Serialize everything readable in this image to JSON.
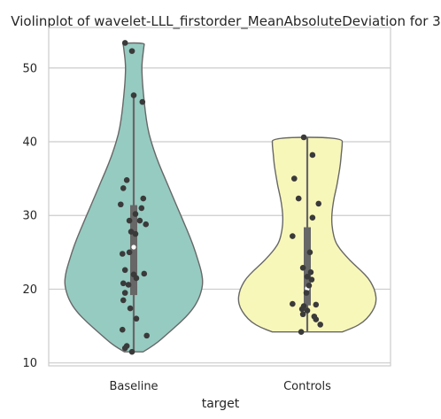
{
  "chart_data": {
    "type": "violin",
    "title": "Violinplot of wavelet-LLL_firstorder_MeanAbsoluteDeviation for 3",
    "xlabel": "target",
    "ylabel": "",
    "categories": [
      "Baseline",
      "Controls"
    ],
    "ylim": [
      9.6,
      55.5
    ],
    "yticks": [
      10,
      20,
      30,
      40,
      50
    ],
    "grid": true,
    "colors": [
      "#96cbc1",
      "#f8f7ba"
    ],
    "outline_color": "#676767",
    "box_color": "#676767",
    "point_color": "#3a3a3a",
    "series": [
      {
        "name": "Baseline",
        "range": [
          11.5,
          53.4
        ],
        "quartiles": [
          19.2,
          25.7,
          31.4
        ],
        "whiskers": [
          11.5,
          46.2
        ],
        "profile": [
          [
            11.5,
            10.5
          ],
          [
            12.5,
            24
          ],
          [
            14,
            38
          ],
          [
            15.5,
            52
          ],
          [
            17,
            64
          ],
          [
            18.5,
            72
          ],
          [
            20,
            76
          ],
          [
            21,
            77
          ],
          [
            22,
            76
          ],
          [
            23,
            74
          ],
          [
            25,
            69
          ],
          [
            27,
            63
          ],
          [
            29,
            56
          ],
          [
            31,
            49
          ],
          [
            33,
            42
          ],
          [
            35,
            35
          ],
          [
            37,
            28
          ],
          [
            39,
            22
          ],
          [
            41,
            17
          ],
          [
            43,
            14
          ],
          [
            45,
            12
          ],
          [
            47,
            10.5
          ],
          [
            48.5,
            9.5
          ],
          [
            50,
            9
          ],
          [
            51,
            9.5
          ],
          [
            52,
            10.5
          ],
          [
            53,
            11.5
          ],
          [
            53.4,
            12
          ]
        ],
        "points": [
          [
            -0.1,
            53.4
          ],
          [
            -0.02,
            52.3
          ],
          [
            0.0,
            46.3
          ],
          [
            0.1,
            45.4
          ],
          [
            -0.08,
            34.8
          ],
          [
            -0.12,
            33.7
          ],
          [
            0.11,
            32.3
          ],
          [
            -0.15,
            31.5
          ],
          [
            0.09,
            31.0
          ],
          [
            0.02,
            30.2
          ],
          [
            0.07,
            29.3
          ],
          [
            0.14,
            28.8
          ],
          [
            -0.05,
            29.3
          ],
          [
            -0.03,
            27.8
          ],
          [
            0.02,
            27.5
          ],
          [
            -0.13,
            24.8
          ],
          [
            -0.05,
            25.0
          ],
          [
            -0.1,
            22.6
          ],
          [
            0.0,
            22.0
          ],
          [
            0.12,
            22.1
          ],
          [
            0.03,
            21.5
          ],
          [
            -0.12,
            20.8
          ],
          [
            -0.06,
            20.6
          ],
          [
            -0.1,
            19.5
          ],
          [
            -0.12,
            18.5
          ],
          [
            -0.04,
            17.4
          ],
          [
            0.03,
            16.0
          ],
          [
            -0.13,
            14.5
          ],
          [
            0.15,
            13.7
          ],
          [
            -0.08,
            12.3
          ],
          [
            -0.1,
            12.0
          ],
          [
            -0.02,
            11.5
          ]
        ]
      },
      {
        "name": "Controls",
        "range": [
          14.2,
          40.6
        ],
        "quartiles": [
          17.8,
          20.1,
          28.4
        ],
        "whiskers": [
          14.2,
          40.6
        ],
        "profile": [
          [
            14.2,
            39
          ],
          [
            14.8,
            52
          ],
          [
            15.5,
            62
          ],
          [
            16.5,
            70
          ],
          [
            17.5,
            75
          ],
          [
            18.5,
            77
          ],
          [
            19.5,
            76
          ],
          [
            20.5,
            73
          ],
          [
            21.5,
            68
          ],
          [
            22.5,
            60
          ],
          [
            23.5,
            51
          ],
          [
            24.5,
            43
          ],
          [
            25.5,
            36
          ],
          [
            26.5,
            31
          ],
          [
            28,
            28
          ],
          [
            29.5,
            27
          ],
          [
            31,
            28
          ],
          [
            32.5,
            30
          ],
          [
            34,
            33
          ],
          [
            35.5,
            35
          ],
          [
            37,
            37
          ],
          [
            38.5,
            38
          ],
          [
            39.5,
            39
          ],
          [
            40.6,
            39
          ]
        ],
        "points": [
          [
            -0.04,
            40.6
          ],
          [
            0.06,
            38.2
          ],
          [
            -0.15,
            35.0
          ],
          [
            -0.1,
            32.3
          ],
          [
            0.13,
            31.6
          ],
          [
            0.06,
            29.7
          ],
          [
            -0.17,
            27.2
          ],
          [
            0.03,
            25.0
          ],
          [
            -0.05,
            22.9
          ],
          [
            0.04,
            22.3
          ],
          [
            0.0,
            21.7
          ],
          [
            0.05,
            21.3
          ],
          [
            0.02,
            20.5
          ],
          [
            -0.01,
            19.5
          ],
          [
            -0.17,
            18.0
          ],
          [
            0.1,
            17.9
          ],
          [
            -0.04,
            17.7
          ],
          [
            -0.06,
            17.3
          ],
          [
            0.0,
            17.1
          ],
          [
            -0.05,
            16.6
          ],
          [
            0.08,
            16.3
          ],
          [
            0.1,
            15.9
          ],
          [
            0.15,
            15.2
          ],
          [
            -0.07,
            14.2
          ]
        ]
      }
    ]
  }
}
